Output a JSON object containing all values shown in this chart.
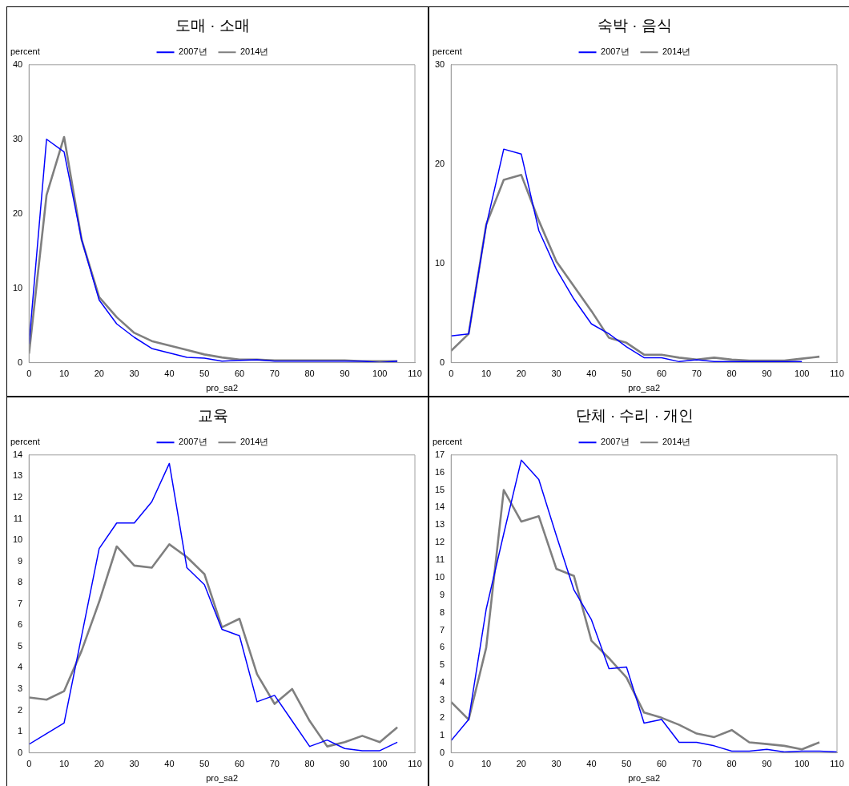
{
  "chart_data": [
    {
      "type": "line",
      "title": "도매 · 소매",
      "xlabel": "pro_sa2",
      "ylabel": "percent",
      "xlim": [
        0,
        110
      ],
      "xticks": [
        0,
        10,
        20,
        30,
        40,
        50,
        60,
        70,
        80,
        90,
        100,
        110
      ],
      "ylim": [
        0,
        40
      ],
      "yticks": [
        0,
        10,
        20,
        30,
        40
      ],
      "grid": false,
      "legend": "top",
      "series": [
        {
          "name": "2007년",
          "color": "#0000ff",
          "x": [
            0,
            5,
            10,
            15,
            20,
            25,
            30,
            35,
            40,
            45,
            50,
            55,
            60,
            65,
            70,
            75,
            80,
            85,
            90,
            95,
            100,
            105
          ],
          "values": [
            2.5,
            30,
            28.3,
            16.5,
            8.4,
            5.2,
            3.4,
            1.9,
            1.3,
            0.7,
            0.6,
            0.2,
            0.3,
            0.4,
            0.2,
            0.2,
            0.2,
            0.2,
            0.2,
            0.2,
            0,
            0.2
          ]
        },
        {
          "name": "2014년",
          "color": "#7f7f7f",
          "x": [
            0,
            5,
            10,
            15,
            20,
            25,
            30,
            35,
            40,
            45,
            50,
            55,
            60,
            65,
            70,
            75,
            80,
            85,
            90,
            95,
            100,
            105
          ],
          "values": [
            1.2,
            22.5,
            30.3,
            16.5,
            8.8,
            6.1,
            4,
            2.9,
            2.3,
            1.7,
            1.1,
            0.7,
            0.4,
            0.4,
            0.3,
            0.3,
            0.3,
            0.3,
            0.3,
            0.2,
            0.2,
            0.2
          ]
        }
      ]
    },
    {
      "type": "line",
      "title": "숙박 · 음식",
      "xlabel": "pro_sa2",
      "ylabel": "percent",
      "xlim": [
        0,
        110
      ],
      "xticks": [
        0,
        10,
        20,
        30,
        40,
        50,
        60,
        70,
        80,
        90,
        100,
        110
      ],
      "ylim": [
        0,
        30
      ],
      "yticks": [
        0,
        10,
        20,
        30
      ],
      "grid": false,
      "legend": "top",
      "series": [
        {
          "name": "2007년",
          "color": "#0000ff",
          "x": [
            0,
            5,
            10,
            15,
            20,
            25,
            30,
            35,
            40,
            45,
            50,
            55,
            60,
            65,
            70,
            75,
            80,
            85,
            90,
            95,
            100
          ],
          "values": [
            2.7,
            2.9,
            13.8,
            21.5,
            21,
            13.3,
            9.4,
            6.4,
            3.9,
            2.9,
            1.6,
            0.5,
            0.5,
            0.1,
            0.3,
            0.1,
            0.1,
            0.1,
            0.1,
            0.1,
            0.1
          ]
        },
        {
          "name": "2014년",
          "color": "#7f7f7f",
          "x": [
            0,
            5,
            10,
            15,
            20,
            25,
            30,
            35,
            40,
            45,
            50,
            55,
            60,
            65,
            70,
            75,
            80,
            85,
            90,
            95,
            100,
            105
          ],
          "values": [
            1.2,
            2.9,
            13.9,
            18.4,
            18.9,
            14.3,
            10.2,
            7.7,
            5.2,
            2.5,
            2,
            0.8,
            0.8,
            0.5,
            0.3,
            0.5,
            0.3,
            0.2,
            0.2,
            0.2,
            0.4,
            0.6
          ]
        }
      ]
    },
    {
      "type": "line",
      "title": "교육",
      "xlabel": "pro_sa2",
      "ylabel": "percent",
      "xlim": [
        0,
        110
      ],
      "xticks": [
        0,
        10,
        20,
        30,
        40,
        50,
        60,
        70,
        80,
        90,
        100,
        110
      ],
      "ylim": [
        0,
        14
      ],
      "yticks": [
        0,
        1,
        2,
        3,
        4,
        5,
        6,
        7,
        8,
        9,
        10,
        11,
        12,
        13,
        14
      ],
      "grid": false,
      "legend": "top",
      "series": [
        {
          "name": "2007년",
          "color": "#0000ff",
          "x": [
            0,
            5,
            10,
            15,
            20,
            25,
            30,
            35,
            40,
            45,
            50,
            55,
            60,
            65,
            70,
            75,
            80,
            85,
            90,
            95,
            100,
            105
          ],
          "values": [
            0.4,
            0.9,
            1.4,
            5.5,
            9.6,
            10.8,
            10.8,
            11.8,
            13.6,
            8.7,
            7.9,
            5.8,
            5.5,
            2.4,
            2.7,
            1.5,
            0.3,
            0.6,
            0.2,
            0.1,
            0.1,
            0.5
          ]
        },
        {
          "name": "2014년",
          "color": "#7f7f7f",
          "x": [
            0,
            5,
            10,
            15,
            20,
            25,
            30,
            35,
            40,
            45,
            50,
            55,
            60,
            65,
            70,
            75,
            80,
            85,
            90,
            95,
            100,
            105
          ],
          "values": [
            2.6,
            2.5,
            2.9,
            4.8,
            7.1,
            9.7,
            8.8,
            8.7,
            9.8,
            9.2,
            8.4,
            5.9,
            6.3,
            3.7,
            2.3,
            3,
            1.5,
            0.3,
            0.5,
            0.8,
            0.5,
            1.2
          ]
        }
      ]
    },
    {
      "type": "line",
      "title": "단체 · 수리 · 개인",
      "xlabel": "pro_sa2",
      "ylabel": "percent",
      "xlim": [
        0,
        110
      ],
      "xticks": [
        0,
        10,
        20,
        30,
        40,
        50,
        60,
        70,
        80,
        90,
        100,
        110
      ],
      "ylim": [
        0,
        17
      ],
      "yticks": [
        0,
        1,
        2,
        3,
        4,
        5,
        6,
        7,
        8,
        9,
        10,
        11,
        12,
        13,
        14,
        15,
        16,
        17
      ],
      "grid": false,
      "legend": "top",
      "series": [
        {
          "name": "2007년",
          "color": "#0000ff",
          "x": [
            0,
            5,
            10,
            15,
            20,
            25,
            30,
            35,
            40,
            45,
            50,
            55,
            60,
            65,
            70,
            75,
            80,
            85,
            90,
            95,
            100,
            105,
            110
          ],
          "values": [
            0.7,
            1.9,
            8.2,
            12.5,
            16.7,
            15.6,
            12.4,
            9.3,
            7.6,
            4.8,
            4.9,
            1.7,
            1.9,
            0.6,
            0.6,
            0.4,
            0.1,
            0.1,
            0.2,
            0.05,
            0.1,
            0.1,
            0.05
          ]
        },
        {
          "name": "2014년",
          "color": "#7f7f7f",
          "x": [
            0,
            5,
            10,
            15,
            20,
            25,
            30,
            35,
            40,
            45,
            50,
            55,
            60,
            65,
            70,
            75,
            80,
            85,
            90,
            95,
            100,
            105
          ],
          "values": [
            2.9,
            1.9,
            6,
            15,
            13.2,
            13.5,
            10.5,
            10.1,
            6.4,
            5.4,
            4.3,
            2.3,
            2,
            1.6,
            1.1,
            0.9,
            1.3,
            0.6,
            0.5,
            0.4,
            0.2,
            0.6
          ]
        }
      ]
    }
  ]
}
